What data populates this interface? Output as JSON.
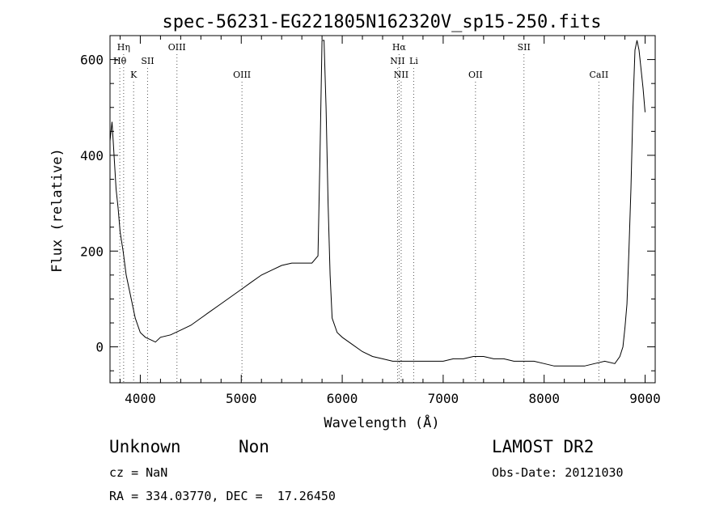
{
  "chart_data": {
    "type": "line",
    "title": "spec-56231-EG221805N162320V_sp15-250.fits",
    "xlabel": "Wavelength (Å)",
    "ylabel": "Flux (relative)",
    "xlim": [
      3700,
      9100
    ],
    "ylim": [
      -75,
      650
    ],
    "xticks": [
      4000,
      5000,
      6000,
      7000,
      8000,
      9000
    ],
    "yticks": [
      0,
      200,
      400,
      600
    ],
    "grid": false,
    "line_color": "#000000",
    "series": [
      {
        "x": [
          3700,
          3720,
          3740,
          3760,
          3780,
          3800,
          3830,
          3860,
          3900,
          3950,
          4000,
          4050,
          4100,
          4150,
          4200,
          4300,
          4400,
          4500,
          4600,
          4700,
          4800,
          4900,
          5000,
          5100,
          5200,
          5300,
          5400,
          5500,
          5600,
          5700,
          5760,
          5780,
          5800,
          5820,
          5840,
          5860,
          5880,
          5900,
          5950,
          6000,
          6100,
          6200,
          6300,
          6400,
          6500,
          6600,
          6700,
          6800,
          6900,
          7000,
          7100,
          7200,
          7300,
          7400,
          7500,
          7600,
          7700,
          7800,
          7900,
          8000,
          8100,
          8200,
          8300,
          8400,
          8500,
          8600,
          8700,
          8750,
          8780,
          8800,
          8820,
          8840,
          8860,
          8880,
          8900,
          8920,
          8940,
          8960,
          8980,
          9000
        ],
        "y": [
          430,
          470,
          400,
          330,
          290,
          240,
          200,
          150,
          110,
          60,
          30,
          20,
          15,
          10,
          20,
          25,
          35,
          45,
          60,
          75,
          90,
          105,
          120,
          135,
          150,
          160,
          170,
          175,
          175,
          175,
          190,
          400,
          640,
          640,
          500,
          300,
          150,
          60,
          30,
          20,
          5,
          -10,
          -20,
          -25,
          -30,
          -30,
          -30,
          -30,
          -30,
          -30,
          -25,
          -25,
          -20,
          -20,
          -25,
          -25,
          -30,
          -30,
          -30,
          -35,
          -40,
          -40,
          -40,
          -40,
          -35,
          -30,
          -35,
          -20,
          0,
          40,
          90,
          200,
          330,
          500,
          620,
          640,
          620,
          580,
          540,
          490
        ]
      }
    ],
    "line_labels": [
      {
        "text": "Hη",
        "wave": 3835,
        "row": 1
      },
      {
        "text": "Hθ",
        "wave": 3797,
        "row": 2
      },
      {
        "text": "K",
        "wave": 3934,
        "row": 3
      },
      {
        "text": "SII",
        "wave": 4072,
        "row": 2
      },
      {
        "text": "OIII",
        "wave": 4363,
        "row": 1
      },
      {
        "text": "OIII",
        "wave": 5007,
        "row": 3
      },
      {
        "text": "Hα",
        "wave": 6563,
        "row": 1
      },
      {
        "text": "NII",
        "wave": 6548,
        "row": 2
      },
      {
        "text": "Li",
        "wave": 6708,
        "row": 2
      },
      {
        "text": "NII",
        "wave": 6584,
        "row": 3
      },
      {
        "text": "OII",
        "wave": 7320,
        "row": 3
      },
      {
        "text": "SII",
        "wave": 7800,
        "row": 1
      },
      {
        "text": "CaII",
        "wave": 8542,
        "row": 3
      }
    ]
  },
  "info": {
    "class": "Unknown",
    "subclass": "Non",
    "survey": "LAMOST DR2",
    "cz": "cz = NaN",
    "obs_date": "Obs-Date: 20121030",
    "radec": "RA = 334.03770, DEC =  17.26450"
  }
}
